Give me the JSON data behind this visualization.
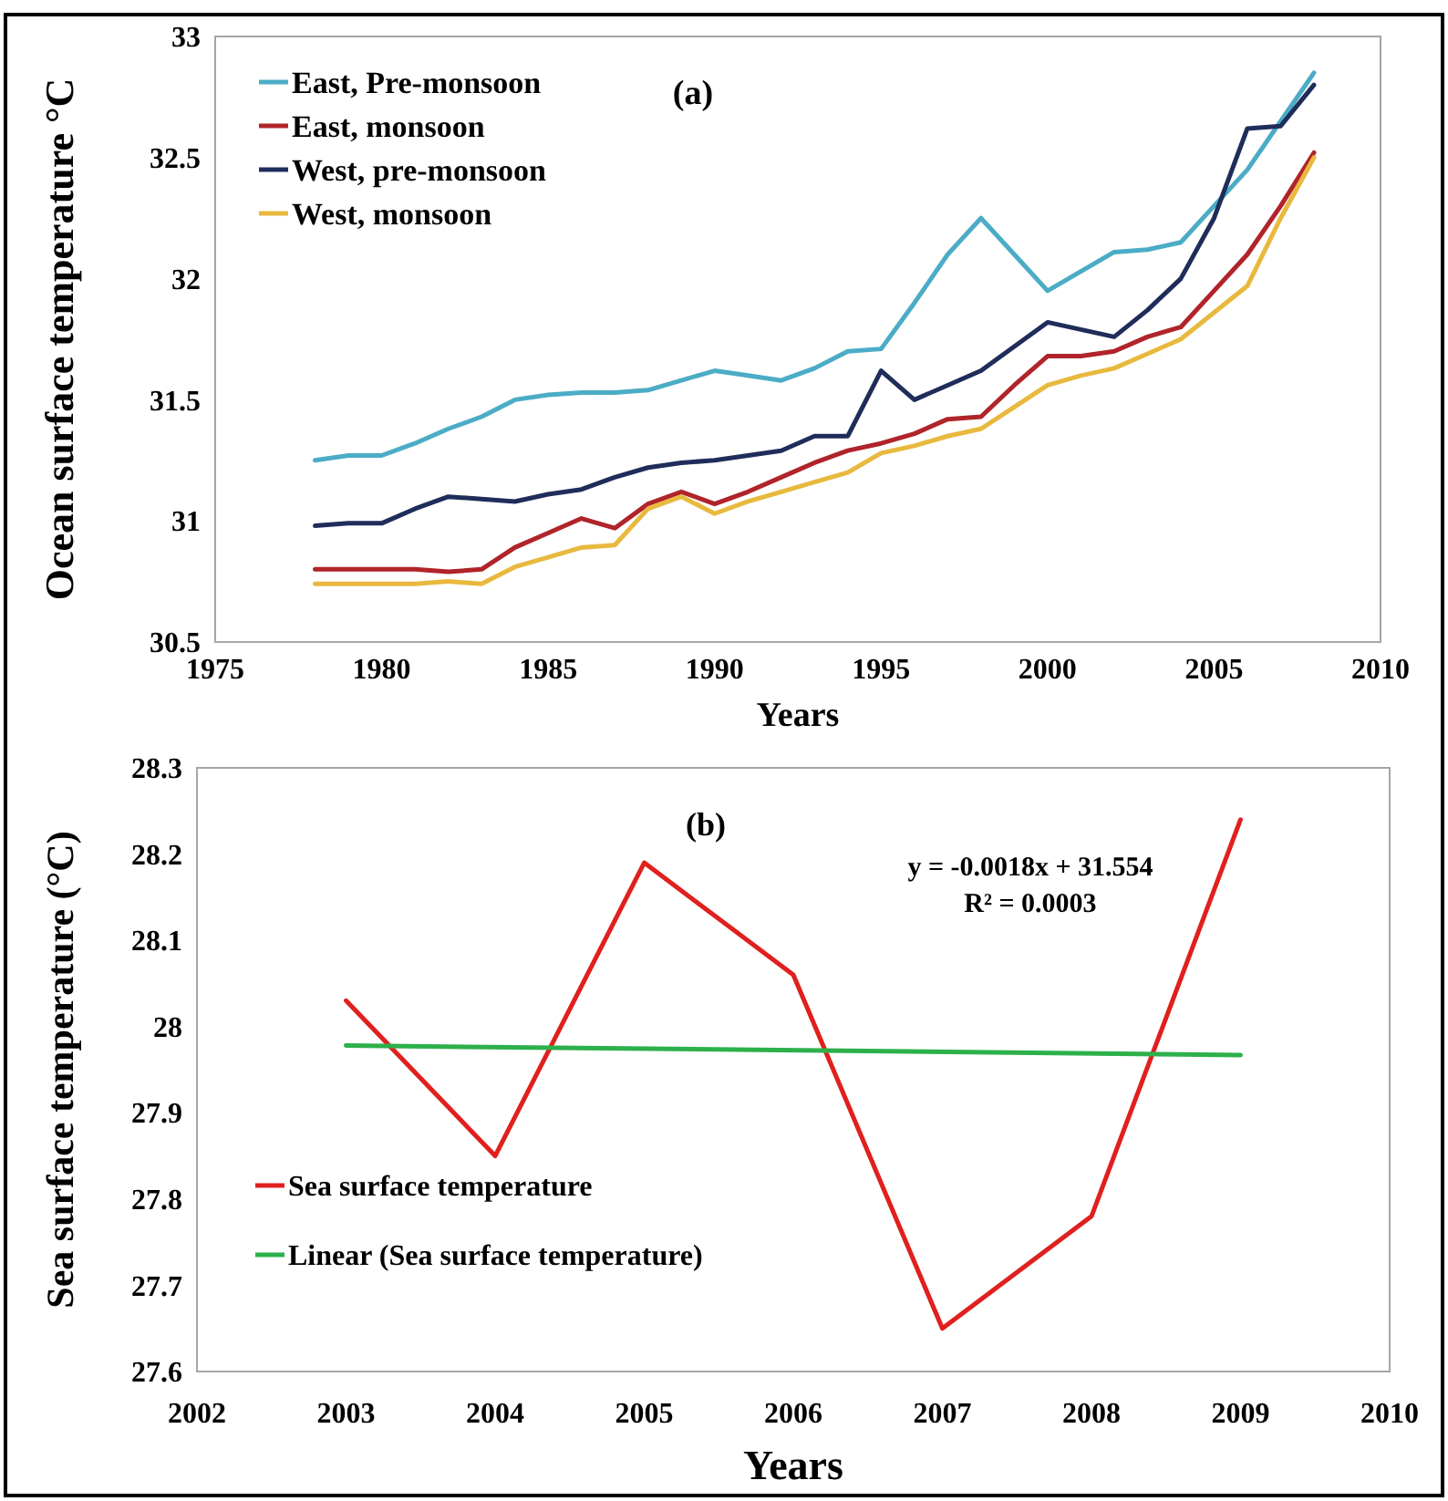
{
  "chart_data": [
    {
      "type": "line",
      "title": "(a)",
      "xlabel": "Years",
      "ylabel": "Ocean surface temperature °C",
      "xlim": [
        1975,
        2010
      ],
      "xticks": [
        1975,
        1980,
        1985,
        1990,
        1995,
        2000,
        2005,
        2010
      ],
      "ylim": [
        30.5,
        33
      ],
      "yticks": [
        30.5,
        31,
        31.5,
        32,
        32.5,
        33
      ],
      "grid": false,
      "legend": "top left",
      "marker": "none",
      "line_style": "solid",
      "x": [
        1978,
        1979,
        1980,
        1981,
        1982,
        1983,
        1984,
        1985,
        1986,
        1987,
        1988,
        1989,
        1990,
        1991,
        1992,
        1993,
        1994,
        1995,
        1996,
        1997,
        1998,
        1999,
        2000,
        2001,
        2002,
        2003,
        2004,
        2005,
        2006,
        2007,
        2008
      ],
      "series": [
        {
          "name": "East, Pre-monsoon",
          "color": "#4bacc6",
          "values": [
            31.25,
            31.27,
            31.27,
            31.32,
            31.38,
            31.43,
            31.5,
            31.52,
            31.53,
            31.53,
            31.54,
            31.58,
            31.62,
            31.6,
            31.58,
            31.63,
            31.7,
            31.71,
            31.9,
            32.1,
            32.25,
            32.1,
            31.95,
            32.03,
            32.11,
            32.12,
            32.15,
            32.3,
            32.45,
            32.65,
            32.85
          ]
        },
        {
          "name": "East, monsoon",
          "color": "#b0242a",
          "values": [
            30.8,
            30.8,
            30.8,
            30.8,
            30.79,
            30.8,
            30.89,
            30.95,
            31.01,
            30.97,
            31.07,
            31.12,
            31.07,
            31.12,
            31.18,
            31.24,
            31.29,
            31.32,
            31.36,
            31.42,
            31.43,
            31.56,
            31.68,
            31.68,
            31.7,
            31.76,
            31.8,
            31.95,
            32.1,
            32.3,
            32.52
          ]
        },
        {
          "name": "West, pre-monsoon",
          "color": "#1f2d5a",
          "values": [
            30.98,
            30.99,
            30.99,
            31.05,
            31.1,
            31.09,
            31.08,
            31.11,
            31.13,
            31.18,
            31.22,
            31.24,
            31.25,
            31.27,
            31.29,
            31.35,
            31.35,
            31.62,
            31.5,
            31.56,
            31.62,
            31.72,
            31.82,
            31.79,
            31.76,
            31.87,
            32.0,
            32.25,
            32.62,
            32.63,
            32.8
          ]
        },
        {
          "name": "West, monsoon",
          "color": "#e8b93e",
          "values": [
            30.74,
            30.74,
            30.74,
            30.74,
            30.75,
            30.74,
            30.81,
            30.85,
            30.89,
            30.9,
            31.05,
            31.1,
            31.03,
            31.08,
            31.12,
            31.16,
            31.2,
            31.28,
            31.31,
            31.35,
            31.38,
            31.47,
            31.56,
            31.6,
            31.63,
            31.69,
            31.75,
            31.86,
            31.97,
            32.25,
            32.5
          ]
        }
      ]
    },
    {
      "type": "line",
      "title": "(b)",
      "xlabel": "Years",
      "ylabel": "Sea surface temperature (°C)",
      "xlim": [
        2002,
        2010
      ],
      "xticks": [
        2002,
        2003,
        2004,
        2005,
        2006,
        2007,
        2008,
        2009,
        2010
      ],
      "ylim": [
        27.6,
        28.3
      ],
      "yticks": [
        27.6,
        27.7,
        27.8,
        27.9,
        28,
        28.1,
        28.2,
        28.3
      ],
      "grid": false,
      "legend": "bottom left",
      "marker": "none",
      "line_style": "solid",
      "annotations": [
        "y = -0.0018x + 31.554",
        "R² = 0.0003"
      ],
      "x": [
        2003,
        2004,
        2005,
        2006,
        2007,
        2008,
        2009
      ],
      "series": [
        {
          "name": "Sea surface temperature",
          "color": "#e0201e",
          "values": [
            28.03,
            27.85,
            28.19,
            28.06,
            27.65,
            27.78,
            28.24
          ]
        },
        {
          "name": "Linear (Sea surface temperature)",
          "type": "line",
          "color": "#2db04b",
          "x": [
            2003,
            2009
          ],
          "values": [
            27.978,
            27.967
          ]
        }
      ]
    }
  ]
}
